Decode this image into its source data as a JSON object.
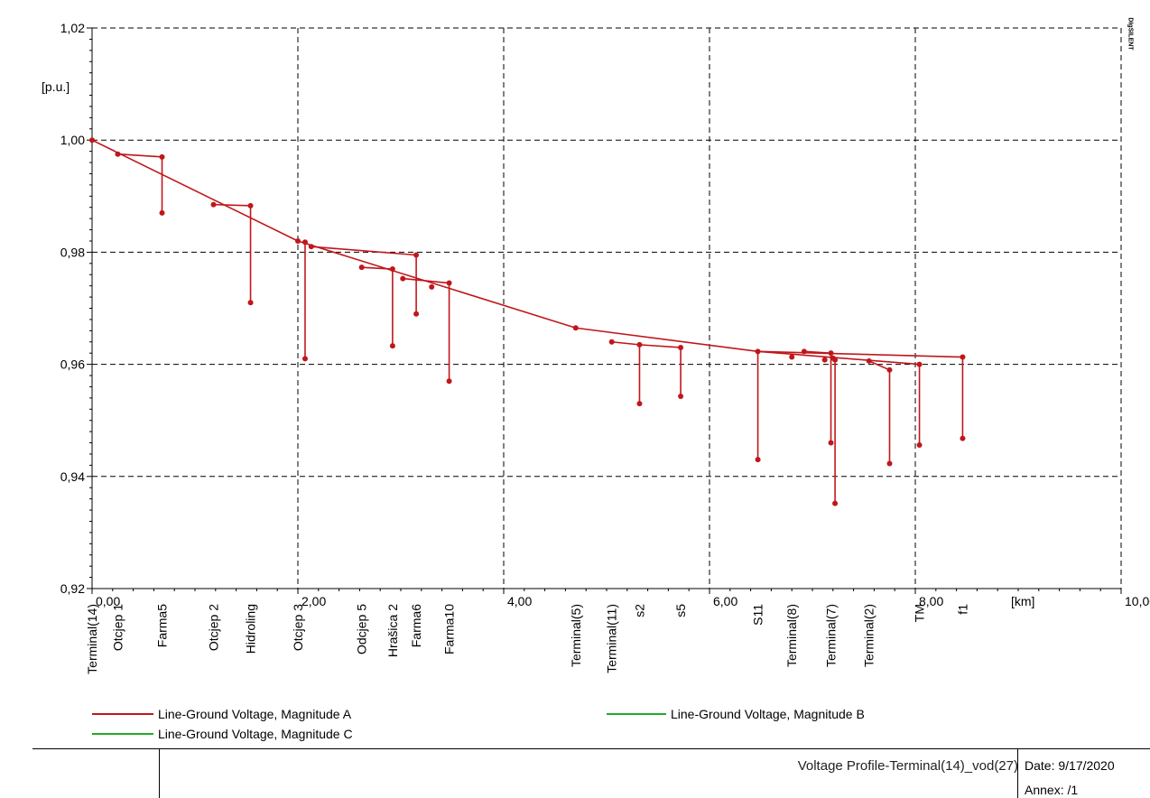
{
  "chart_data": {
    "type": "line",
    "xlabel": "[km]",
    "ylabel": "[p.u.]",
    "xlim": [
      0,
      10
    ],
    "ylim": [
      0.92,
      1.02
    ],
    "x_ticks": [
      "0,00",
      "2,00",
      "4,00",
      "6,00",
      "8,00",
      "10,00"
    ],
    "y_ticks": [
      "0,92",
      "0,94",
      "0,96",
      "0,98",
      "1,00",
      "1,02"
    ],
    "grid": true,
    "series": [
      {
        "name": "Line-Ground Voltage, Magnitude A",
        "color": "#c0171b"
      },
      {
        "name": "Line-Ground Voltage, Magnitude B",
        "color": "#22aa22"
      },
      {
        "name": "Line-Ground Voltage, Magnitude C",
        "color": "#22aa22"
      }
    ],
    "points": [
      [
        0.0,
        1.0
      ],
      [
        0.25,
        0.9975
      ],
      [
        0.68,
        0.997
      ],
      [
        0.68,
        0.987
      ],
      [
        1.18,
        0.9885
      ],
      [
        1.54,
        0.9883
      ],
      [
        1.54,
        0.971
      ],
      [
        2.0,
        0.982
      ],
      [
        2.07,
        0.9818
      ],
      [
        2.07,
        0.961
      ],
      [
        2.13,
        0.981
      ],
      [
        3.15,
        0.9795
      ],
      [
        3.15,
        0.969
      ],
      [
        2.62,
        0.9773
      ],
      [
        2.92,
        0.977
      ],
      [
        2.92,
        0.9633
      ],
      [
        3.02,
        0.9753
      ],
      [
        3.3,
        0.9738
      ],
      [
        3.47,
        0.9745
      ],
      [
        3.47,
        0.957
      ],
      [
        4.7,
        0.9665
      ],
      [
        5.05,
        0.964
      ],
      [
        5.32,
        0.9635
      ],
      [
        5.32,
        0.953
      ],
      [
        5.72,
        0.963
      ],
      [
        5.72,
        0.9543
      ],
      [
        6.47,
        0.9623
      ],
      [
        6.47,
        0.943
      ],
      [
        6.8,
        0.9613
      ],
      [
        6.92,
        0.9623
      ],
      [
        7.12,
        0.9608
      ],
      [
        7.18,
        0.962
      ],
      [
        7.18,
        0.946
      ],
      [
        7.2,
        0.9611
      ],
      [
        7.22,
        0.9608
      ],
      [
        7.22,
        0.9352
      ],
      [
        7.55,
        0.9606
      ],
      [
        7.75,
        0.959
      ],
      [
        7.75,
        0.9423
      ],
      [
        8.04,
        0.96
      ],
      [
        8.04,
        0.9456
      ],
      [
        8.46,
        0.9613
      ],
      [
        8.46,
        0.9468
      ]
    ],
    "segments": [
      [
        [
          0.0,
          1.0
        ],
        [
          2.0,
          0.982
        ]
      ],
      [
        [
          2.0,
          0.982
        ],
        [
          4.7,
          0.9665
        ]
      ],
      [
        [
          4.7,
          0.9665
        ],
        [
          6.47,
          0.9623
        ]
      ],
      [
        [
          6.47,
          0.9623
        ],
        [
          8.04,
          0.96
        ]
      ],
      [
        [
          0.25,
          0.9975
        ],
        [
          0.68,
          0.997
        ]
      ],
      [
        [
          0.68,
          0.997
        ],
        [
          0.68,
          0.987
        ]
      ],
      [
        [
          1.18,
          0.9885
        ],
        [
          1.54,
          0.9883
        ]
      ],
      [
        [
          1.54,
          0.9883
        ],
        [
          1.54,
          0.971
        ]
      ],
      [
        [
          2.07,
          0.9818
        ],
        [
          2.07,
          0.961
        ]
      ],
      [
        [
          2.13,
          0.981
        ],
        [
          3.15,
          0.9795
        ]
      ],
      [
        [
          3.15,
          0.9795
        ],
        [
          3.15,
          0.969
        ]
      ],
      [
        [
          2.62,
          0.9773
        ],
        [
          2.92,
          0.977
        ]
      ],
      [
        [
          2.92,
          0.977
        ],
        [
          2.92,
          0.9633
        ]
      ],
      [
        [
          3.02,
          0.9753
        ],
        [
          3.47,
          0.9745
        ]
      ],
      [
        [
          3.47,
          0.9745
        ],
        [
          3.47,
          0.957
        ]
      ],
      [
        [
          5.05,
          0.964
        ],
        [
          5.32,
          0.9635
        ]
      ],
      [
        [
          5.32,
          0.9635
        ],
        [
          5.32,
          0.953
        ]
      ],
      [
        [
          5.32,
          0.9635
        ],
        [
          5.72,
          0.963
        ]
      ],
      [
        [
          5.72,
          0.963
        ],
        [
          5.72,
          0.9543
        ]
      ],
      [
        [
          6.47,
          0.9623
        ],
        [
          6.47,
          0.943
        ]
      ],
      [
        [
          6.47,
          0.9623
        ],
        [
          8.46,
          0.9613
        ]
      ],
      [
        [
          8.46,
          0.9613
        ],
        [
          8.46,
          0.9468
        ]
      ],
      [
        [
          6.92,
          0.9623
        ],
        [
          7.18,
          0.962
        ]
      ],
      [
        [
          7.18,
          0.962
        ],
        [
          7.18,
          0.946
        ]
      ],
      [
        [
          7.2,
          0.9611
        ],
        [
          7.22,
          0.9608
        ]
      ],
      [
        [
          7.22,
          0.9608
        ],
        [
          7.22,
          0.9352
        ]
      ],
      [
        [
          7.55,
          0.9606
        ],
        [
          7.75,
          0.959
        ]
      ],
      [
        [
          7.75,
          0.959
        ],
        [
          7.75,
          0.9423
        ]
      ],
      [
        [
          8.04,
          0.96
        ],
        [
          8.04,
          0.9456
        ]
      ]
    ],
    "node_labels": [
      {
        "x": 0.0,
        "text": "Terminal(14)"
      },
      {
        "x": 0.25,
        "text": "Otcjep  1"
      },
      {
        "x": 0.68,
        "text": "Farma5"
      },
      {
        "x": 1.18,
        "text": "Otcjep 2"
      },
      {
        "x": 1.54,
        "text": "Hidroling"
      },
      {
        "x": 2.0,
        "text": "Otcjep 3"
      },
      {
        "x": 2.62,
        "text": "Odcjep 5"
      },
      {
        "x": 2.92,
        "text": "Hrašica 2"
      },
      {
        "x": 3.15,
        "text": "Farma6"
      },
      {
        "x": 3.47,
        "text": "Farma10"
      },
      {
        "x": 4.7,
        "text": "Terminal(5)"
      },
      {
        "x": 5.05,
        "text": "Terminal(11)"
      },
      {
        "x": 5.32,
        "text": "s2"
      },
      {
        "x": 5.72,
        "text": "s5"
      },
      {
        "x": 6.47,
        "text": "S11"
      },
      {
        "x": 6.8,
        "text": "Terminal(8)"
      },
      {
        "x": 7.18,
        "text": "Terminal(7)"
      },
      {
        "x": 7.55,
        "text": "Terminal(2)"
      },
      {
        "x": 8.04,
        "text": "TM"
      },
      {
        "x": 8.46,
        "text": "f1"
      }
    ]
  },
  "footer": {
    "title": "Voltage Profile-Terminal(14)_vod(27)",
    "date": "Date: 9/17/2020",
    "annex": "Annex:  /1"
  },
  "logo": {
    "text": "DIgSILENT"
  }
}
